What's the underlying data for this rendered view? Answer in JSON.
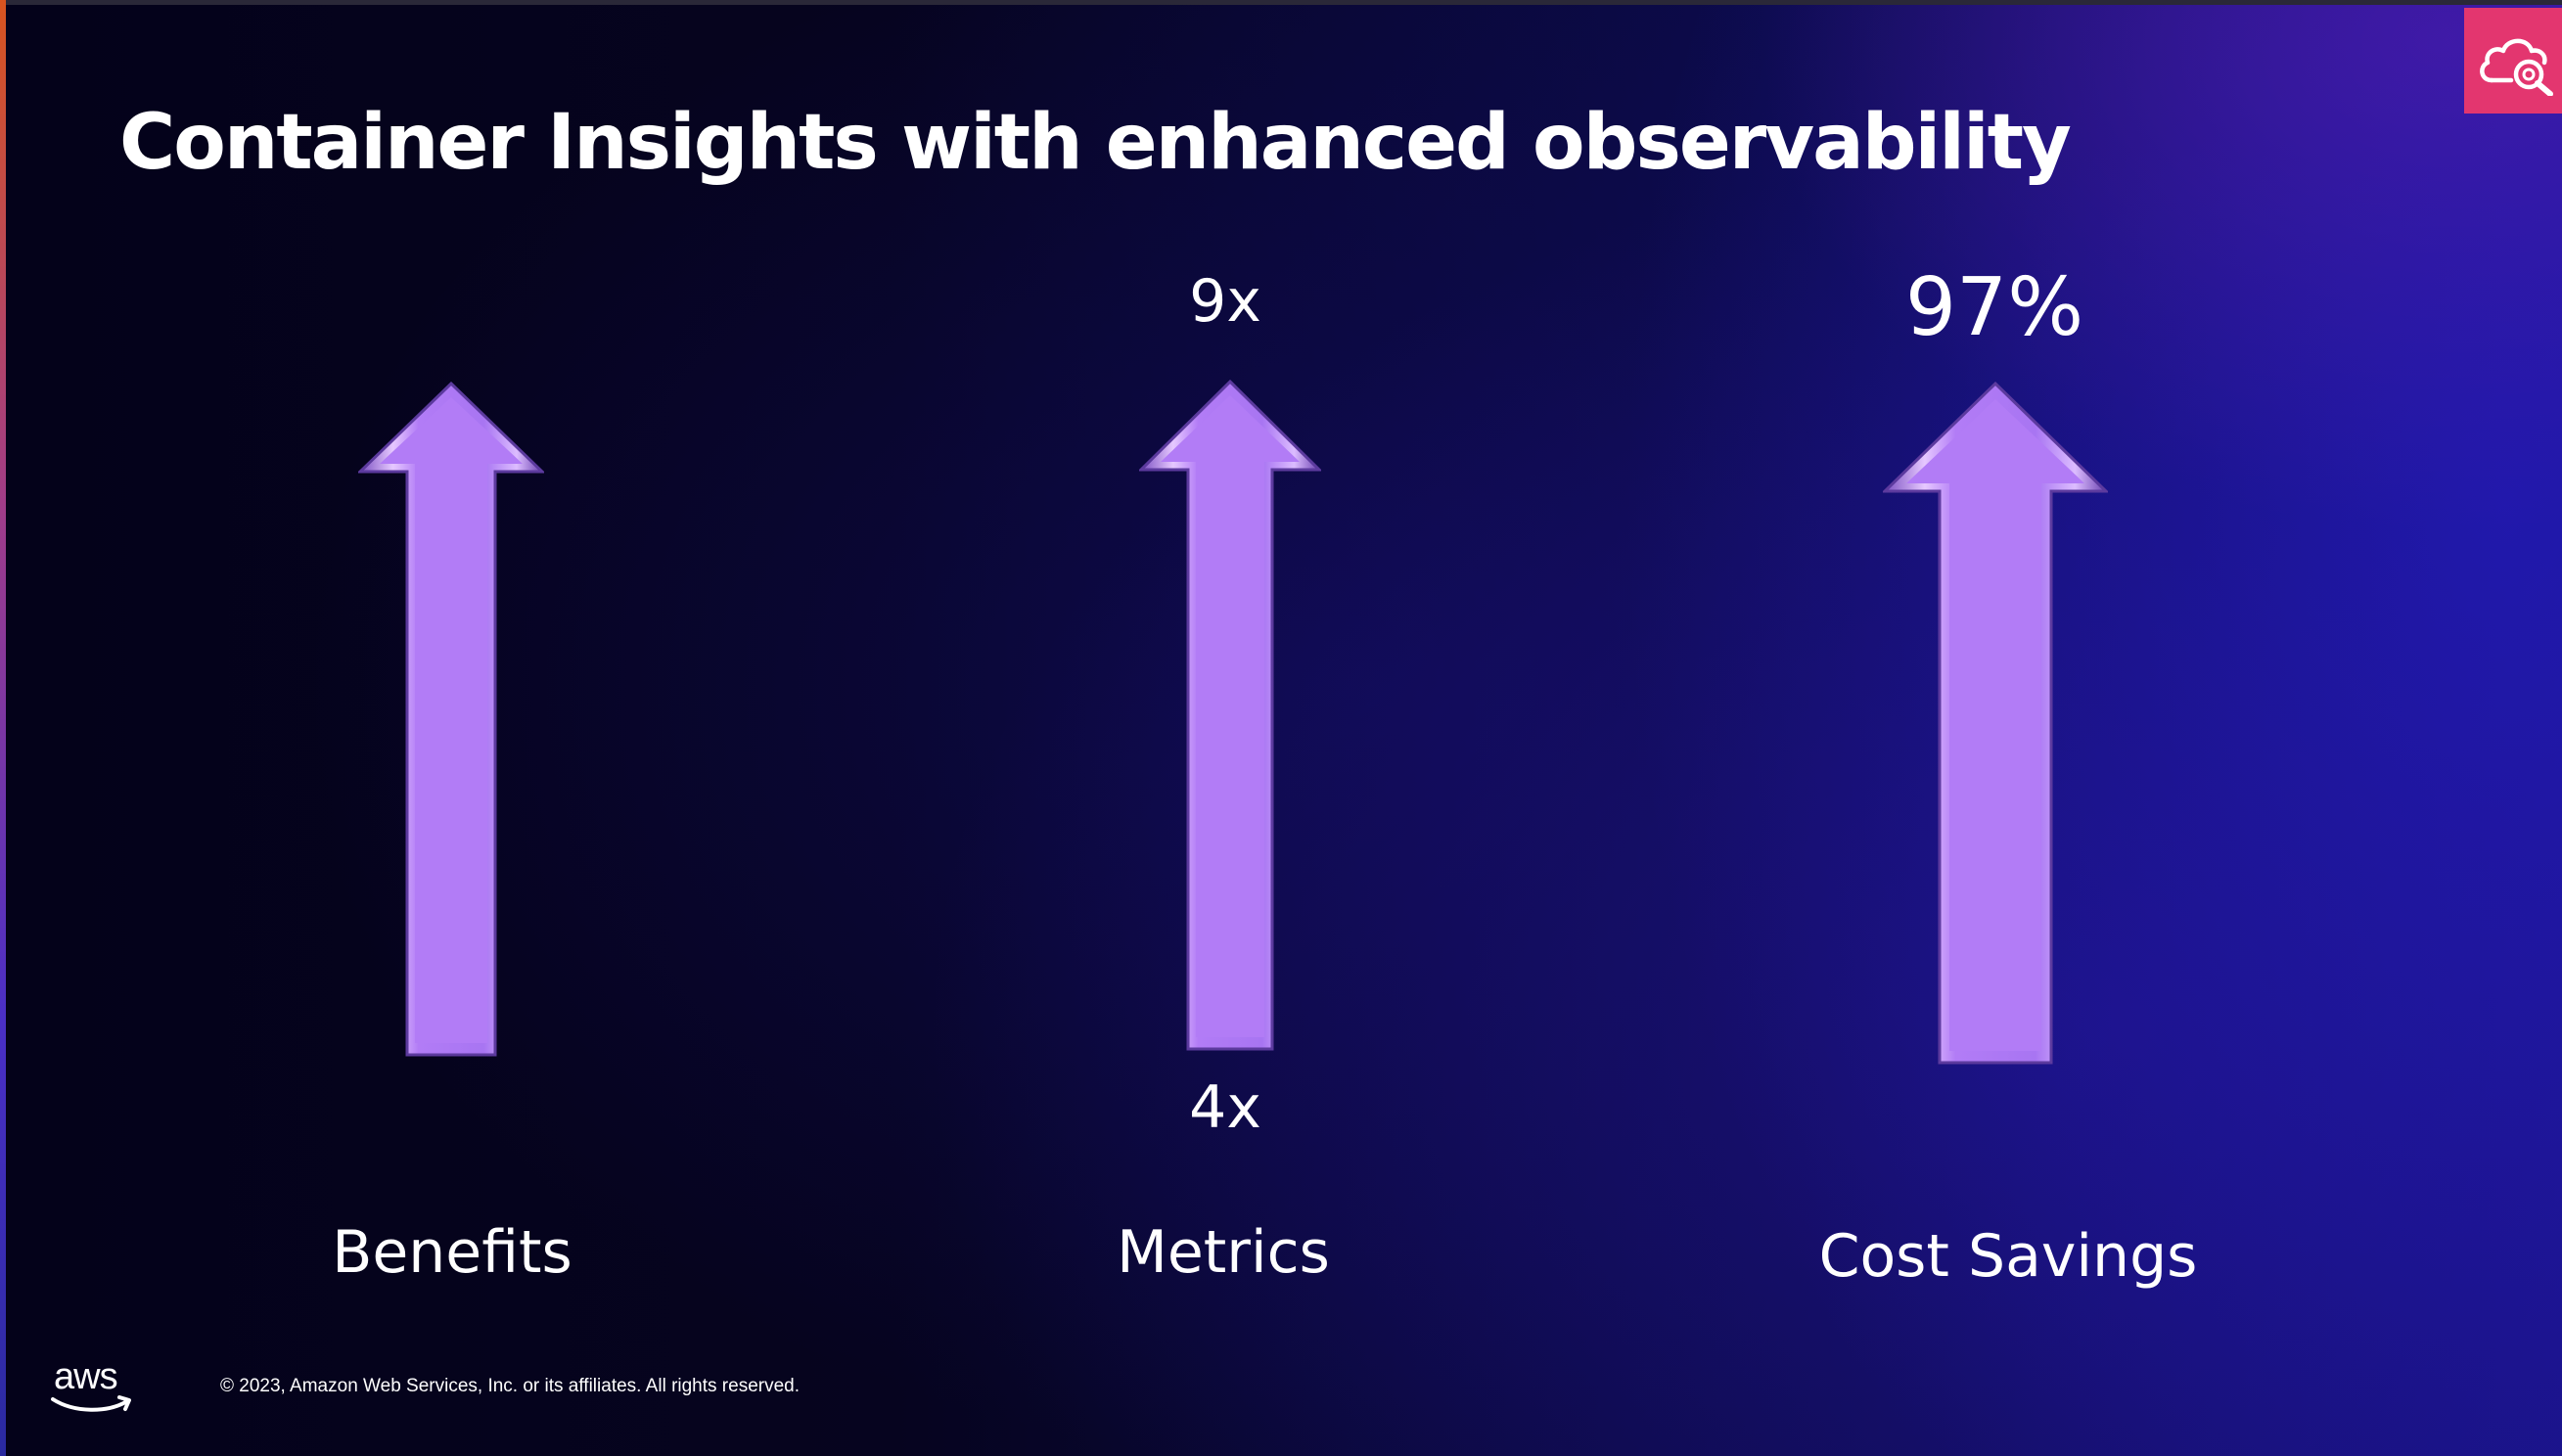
{
  "slide": {
    "title": "Container Insights with enhanced observability",
    "badge_icon": "cloud-search-icon",
    "badge_color": "#e3366f",
    "arrow_color": "#b27cf6"
  },
  "columns": [
    {
      "caption": "Benefits",
      "top_label": "",
      "bottom_label": ""
    },
    {
      "caption": "Metrics",
      "top_label": "9x",
      "bottom_label": "4x"
    },
    {
      "caption": "Cost Savings",
      "top_label": "97%",
      "bottom_label": ""
    }
  ],
  "footer": {
    "logo_text": "aws",
    "copyright": "© 2023, Amazon Web Services, Inc. or its affiliates. All rights reserved."
  }
}
